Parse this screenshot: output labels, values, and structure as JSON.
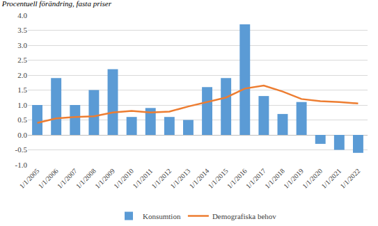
{
  "chart_data": {
    "type": "bar",
    "title": "Procentuell förändring, fasta priser",
    "categories": [
      "1/1/2005",
      "1/1/2006",
      "1/1/2007",
      "1/1/2008",
      "1/1/2009",
      "1/1/2010",
      "1/1/2011",
      "1/1/2012",
      "1/1/2013",
      "1/1/2014",
      "1/1/2015",
      "1/1/2016",
      "1/1/2017",
      "1/1/2018",
      "1/1/2019",
      "1/1/2020",
      "1/1/2021",
      "1/1/2022"
    ],
    "series": [
      {
        "name": "Konsumtion",
        "type": "bar",
        "color": "#5b9bd5",
        "values": [
          1.0,
          1.9,
          1.0,
          1.5,
          2.2,
          0.6,
          0.9,
          0.6,
          0.5,
          1.6,
          1.9,
          3.7,
          1.3,
          0.7,
          1.1,
          -0.3,
          -0.5,
          -0.6
        ]
      },
      {
        "name": "Demografiska behov",
        "type": "line",
        "color": "#ed7d31",
        "values": [
          0.4,
          0.55,
          0.6,
          0.62,
          0.75,
          0.8,
          0.75,
          0.78,
          0.95,
          1.1,
          1.25,
          1.55,
          1.65,
          1.45,
          1.2,
          1.13,
          1.1,
          1.05
        ]
      }
    ],
    "ylim": [
      -1.0,
      4.0
    ],
    "yticks": [
      {
        "value": -1.0,
        "label": "-1.0"
      },
      {
        "value": -0.5,
        "label": "-0.5"
      },
      {
        "value": 0,
        "label": "0.0"
      },
      {
        "value": 0.5,
        "label": "0.5"
      },
      {
        "value": 1.0,
        "label": "1.0"
      },
      {
        "value": 1.5,
        "label": "1.5"
      },
      {
        "value": 2.0,
        "label": "2.0"
      },
      {
        "value": 2.5,
        "label": "2.5"
      },
      {
        "value": 3.0,
        "label": "3.0"
      },
      {
        "value": 3.5,
        "label": "3.5"
      },
      {
        "value": 4.0,
        "label": "4.0"
      }
    ],
    "grid": true,
    "legend": "bottom"
  }
}
